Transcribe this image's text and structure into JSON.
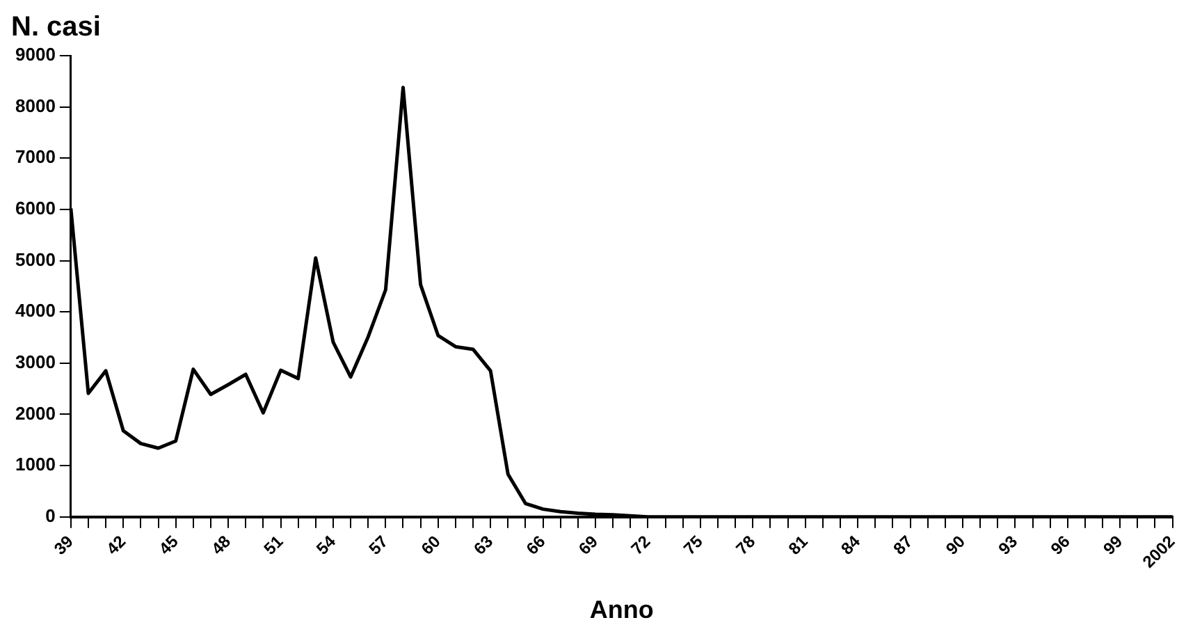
{
  "chart_data": {
    "type": "line",
    "ylabel": "N. casi",
    "xlabel": "Anno",
    "categories": [
      "39",
      null,
      null,
      "42",
      null,
      null,
      "45",
      null,
      null,
      "48",
      null,
      null,
      "51",
      null,
      null,
      "54",
      null,
      null,
      "57",
      null,
      null,
      "60",
      null,
      null,
      "63",
      null,
      null,
      "66",
      null,
      null,
      "69",
      null,
      null,
      "72",
      null,
      null,
      "75",
      null,
      null,
      "78",
      null,
      null,
      "81",
      null,
      null,
      "84",
      null,
      null,
      "87",
      null,
      null,
      "90",
      null,
      null,
      "93",
      null,
      null,
      "96",
      null,
      null,
      "99",
      null,
      null,
      "2002"
    ],
    "series": [
      {
        "color": "#000000",
        "values": [
          6020,
          2410,
          2850,
          1680,
          1430,
          1340,
          1480,
          2880,
          2390,
          2580,
          2780,
          2030,
          2860,
          2700,
          5050,
          3410,
          2730,
          3510,
          4430,
          8380,
          4530,
          3540,
          3320,
          3270,
          2850,
          830,
          260,
          150,
          100,
          70,
          50,
          40,
          20,
          0,
          0,
          0,
          0,
          0,
          0,
          0,
          0,
          0,
          0,
          0,
          0,
          0,
          0,
          0,
          0,
          0,
          0,
          0,
          0,
          0,
          0,
          0,
          0,
          0,
          0,
          0,
          0,
          0,
          0,
          0
        ]
      }
    ],
    "ylim": [
      0,
      9000
    ],
    "yticks": [
      0,
      1000,
      2000,
      3000,
      4000,
      5000,
      6000,
      7000,
      8000,
      9000
    ],
    "grid": false,
    "legend": false,
    "marker": "none",
    "line_style": "solid"
  }
}
